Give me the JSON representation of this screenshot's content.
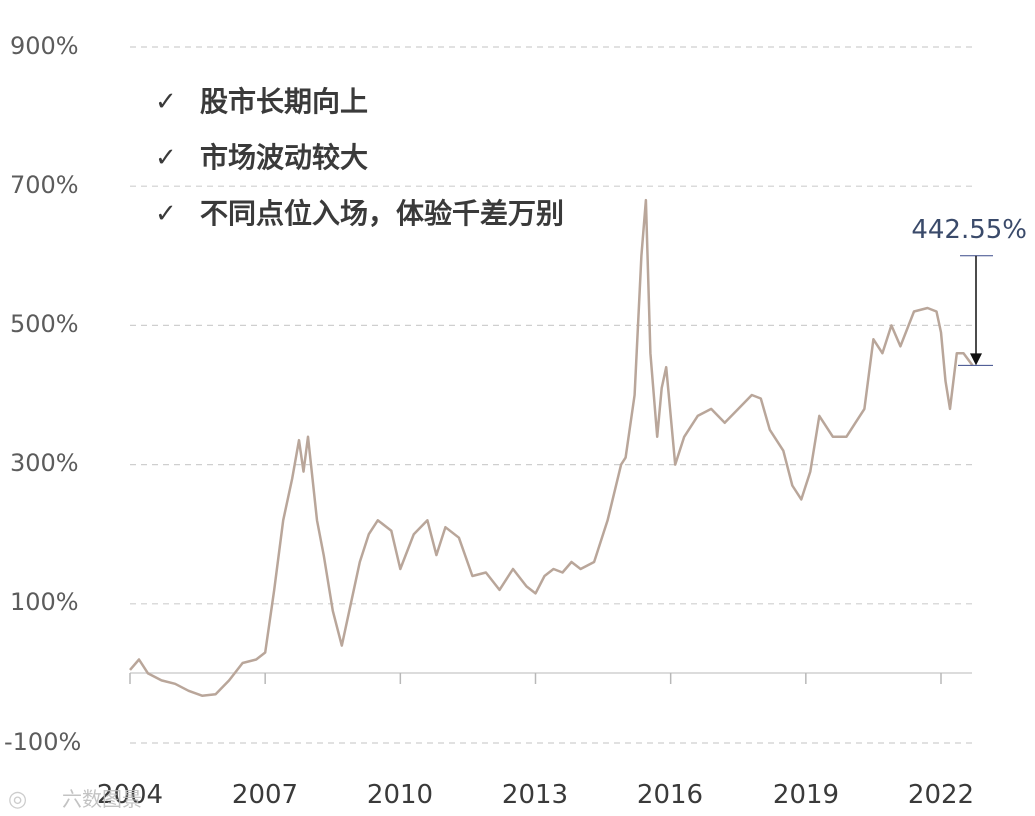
{
  "chart_data": {
    "type": "line",
    "title": "",
    "xlabel": "",
    "ylabel": "",
    "x_ticks": [
      "2004",
      "2007",
      "2010",
      "2013",
      "2016",
      "2019",
      "2022"
    ],
    "y_ticks": [
      "900%",
      "700%",
      "500%",
      "300%",
      "100%",
      "-100%"
    ],
    "y_tick_values": [
      900,
      700,
      500,
      300,
      100,
      -100
    ],
    "xlim": [
      2004.0,
      2022.7
    ],
    "ylim": [
      -100,
      900
    ],
    "grid": true,
    "line_color": "#b9a69a",
    "series": [
      {
        "x": [
          2004.0,
          2004.2,
          2004.4,
          2004.7,
          2005.0,
          2005.3,
          2005.6,
          2005.9,
          2006.2,
          2006.5,
          2006.8,
          2007.0,
          2007.2,
          2007.4,
          2007.6,
          2007.75,
          2007.85,
          2007.95,
          2008.05,
          2008.15,
          2008.3,
          2008.5,
          2008.7,
          2008.9,
          2009.1,
          2009.3,
          2009.5,
          2009.8,
          2010.0,
          2010.3,
          2010.6,
          2010.8,
          2011.0,
          2011.3,
          2011.6,
          2011.9,
          2012.2,
          2012.5,
          2012.8,
          2013.0,
          2013.2,
          2013.4,
          2013.6,
          2013.8,
          2014.0,
          2014.3,
          2014.6,
          2014.9,
          2015.0,
          2015.2,
          2015.35,
          2015.45,
          2015.55,
          2015.7,
          2015.8,
          2015.9,
          2016.1,
          2016.3,
          2016.6,
          2016.9,
          2017.2,
          2017.5,
          2017.8,
          2018.0,
          2018.2,
          2018.5,
          2018.7,
          2018.9,
          2019.1,
          2019.3,
          2019.6,
          2019.9,
          2020.1,
          2020.3,
          2020.5,
          2020.7,
          2020.9,
          2021.1,
          2021.4,
          2021.7,
          2021.9,
          2022.0,
          2022.1,
          2022.2,
          2022.35,
          2022.5,
          2022.7
        ],
        "y": [
          5,
          20,
          0,
          -10,
          -15,
          -25,
          -32,
          -30,
          -10,
          15,
          20,
          30,
          120,
          220,
          280,
          335,
          290,
          340,
          280,
          220,
          170,
          90,
          40,
          100,
          160,
          200,
          220,
          205,
          150,
          200,
          220,
          170,
          210,
          195,
          140,
          145,
          120,
          150,
          125,
          115,
          140,
          150,
          145,
          160,
          150,
          160,
          220,
          300,
          310,
          400,
          600,
          680,
          460,
          340,
          410,
          440,
          300,
          340,
          370,
          380,
          360,
          380,
          400,
          395,
          350,
          320,
          270,
          250,
          290,
          370,
          340,
          340,
          360,
          380,
          480,
          460,
          500,
          470,
          520,
          525,
          520,
          490,
          420,
          380,
          460,
          460,
          442.55
        ]
      }
    ],
    "notes": [
      "股市长期向上",
      "市场波动较大",
      "不同点位入场，体验千差万别"
    ],
    "check_mark": "✓",
    "annotation": {
      "label": "442.55%",
      "top_value": 600,
      "bottom_value": 442.55
    },
    "watermark": "六数图景"
  }
}
